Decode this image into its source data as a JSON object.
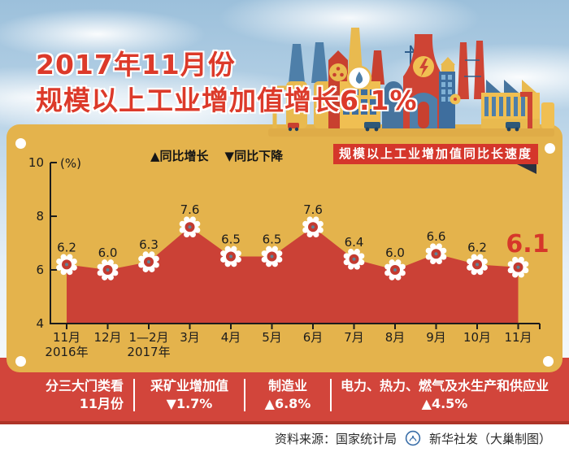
{
  "title": {
    "line1": "2017年11月份",
    "line2": "规模以上工业增加值增长6.1%"
  },
  "legend": {
    "up": "▲同比增长",
    "down": "▼同比下降"
  },
  "badge_label": "规模以上工业增加值同比长速度",
  "chart_data": {
    "type": "area",
    "title": "规模以上工业增加值同比长速度",
    "unit_label": "(%)",
    "categories": [
      "11月",
      "12月",
      "1—2月",
      "3月",
      "4月",
      "5月",
      "6月",
      "7月",
      "8月",
      "9月",
      "10月",
      "11月"
    ],
    "category_years": [
      {
        "index": 0,
        "label": "2016年"
      },
      {
        "index": 2,
        "label": "2017年"
      }
    ],
    "values": [
      6.2,
      6.0,
      6.3,
      7.6,
      6.5,
      6.5,
      7.6,
      6.4,
      6.0,
      6.6,
      6.2,
      6.1
    ],
    "value_labels": [
      "6.2",
      "6.0",
      "6.3",
      "7.6",
      "6.5",
      "6.5",
      "7.6",
      "6.4",
      "6.0",
      "6.6",
      "6.2",
      "6.1"
    ],
    "ylim": [
      4,
      10
    ],
    "yticks": [
      4,
      6,
      8,
      10
    ],
    "grid": false,
    "legend_position": "top-center",
    "highlight_last_point": true,
    "colors": {
      "area": "#cb4136",
      "axis": "#1c1c1c",
      "label": "#1c1c1c",
      "gear_body": "#ffffff",
      "gear_center": "#c23a30",
      "gear_dot": "#5e8396",
      "highlight_value": "#d6372a"
    }
  },
  "bottom_band": {
    "col1": {
      "line1": "分三大门类看",
      "line2": "11月份"
    },
    "col2": {
      "line1": "采矿业增加值",
      "line2": "▼1.7%"
    },
    "col3": {
      "line1": "制造业",
      "line2": "▲6.8%"
    },
    "col4": {
      "line1": "电力、热力、燃气及水生产和供应业",
      "line2": "▲4.5%"
    }
  },
  "footer": {
    "source": "资料来源：国家统计局",
    "credit": "新华社发（大巢制图）"
  },
  "colors": {
    "card_yellow": "#e4b34c",
    "band_red": "#d2453b",
    "badge_red": "#d5362b",
    "title_red": "#dc3a2a",
    "sky_blue": "#9cc0db"
  }
}
